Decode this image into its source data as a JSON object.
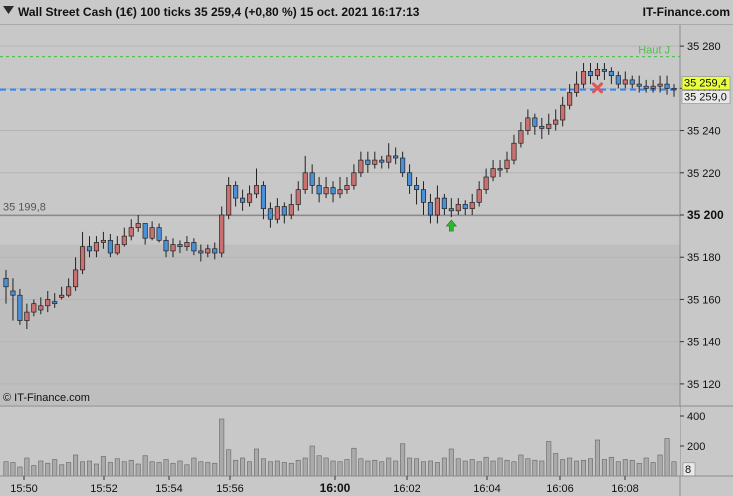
{
  "header": {
    "title": "Wall Street Cash (1€) 100 ticks 35 259,4 (+0,80 %) 15 oct. 2021 16:17:13",
    "brand": "IT-Finance.com",
    "menu_icon": "triangle-down-icon"
  },
  "watermark": "© IT-Finance.com",
  "chart_data": {
    "type": "candlestick",
    "instrument": "Wall Street Cash (1€)",
    "timeframe": "100 ticks",
    "last_price": 35259.4,
    "change_pct": 0.8,
    "date": "15 oct. 2021",
    "time": "16:17:13",
    "ylim": [
      35110,
      35290
    ],
    "y_ticks": [
      35280,
      35260,
      35240,
      35220,
      35200,
      35180,
      35160,
      35140,
      35120
    ],
    "y_tick_labels": [
      "35 280",
      "35 260",
      "35 240",
      "35 220",
      "35 200",
      "35 180",
      "35 160",
      "35 140",
      "35 120"
    ],
    "x_tick_labels": [
      "15:50",
      "15:52",
      "15:54",
      "15:56",
      "16:00",
      "16:02",
      "16:04",
      "16:06",
      "16:08"
    ],
    "x_tick_bold": "16:00",
    "candles": [
      [
        35166,
        35174,
        35158,
        35170
      ],
      [
        35162,
        35170,
        35150,
        35164
      ],
      [
        35150,
        35165,
        35148,
        35162
      ],
      [
        35154,
        35158,
        35146,
        35150
      ],
      [
        35158,
        35160,
        35152,
        35154
      ],
      [
        35157,
        35161,
        35153,
        35155
      ],
      [
        35160,
        35164,
        35154,
        35157
      ],
      [
        35158,
        35163,
        35156,
        35159
      ],
      [
        35162,
        35166,
        35160,
        35161
      ],
      [
        35166,
        35170,
        35161,
        35162
      ],
      [
        35174,
        35180,
        35164,
        35166
      ],
      [
        35185,
        35192,
        35172,
        35174
      ],
      [
        35183,
        35190,
        35180,
        35185
      ],
      [
        35187,
        35190,
        35180,
        35183
      ],
      [
        35188,
        35192,
        35184,
        35187
      ],
      [
        35182,
        35191,
        35180,
        35188
      ],
      [
        35186,
        35190,
        35181,
        35182
      ],
      [
        35190,
        35194,
        35185,
        35186
      ],
      [
        35194,
        35198,
        35188,
        35190
      ],
      [
        35196,
        35200,
        35192,
        35194
      ],
      [
        35189,
        35196,
        35186,
        35196
      ],
      [
        35194,
        35197,
        35188,
        35189
      ],
      [
        35188,
        35196,
        35187,
        35194
      ],
      [
        35183,
        35190,
        35180,
        35188
      ],
      [
        35186,
        35189,
        35180,
        35183
      ],
      [
        35185,
        35188,
        35182,
        35186
      ],
      [
        35187,
        35190,
        35183,
        35185
      ],
      [
        35183,
        35189,
        35181,
        35187
      ],
      [
        35182,
        35186,
        35178,
        35183
      ],
      [
        35184,
        35186,
        35180,
        35182
      ],
      [
        35182,
        35187,
        35179,
        35184
      ],
      [
        35200,
        35204,
        35180,
        35182
      ],
      [
        35214,
        35218,
        35198,
        35200
      ],
      [
        35208,
        35216,
        35204,
        35214
      ],
      [
        35206,
        35212,
        35202,
        35208
      ],
      [
        35210,
        35214,
        35204,
        35206
      ],
      [
        35214,
        35222,
        35208,
        35210
      ],
      [
        35203,
        35216,
        35198,
        35214
      ],
      [
        35198,
        35206,
        35194,
        35203
      ],
      [
        35204,
        35208,
        35196,
        35198
      ],
      [
        35200,
        35206,
        35196,
        35204
      ],
      [
        35205,
        35210,
        35198,
        35200
      ],
      [
        35212,
        35216,
        35202,
        35205
      ],
      [
        35220,
        35228,
        35210,
        35212
      ],
      [
        35214,
        35224,
        35210,
        35220
      ],
      [
        35210,
        35218,
        35206,
        35214
      ],
      [
        35213,
        35218,
        35208,
        35210
      ],
      [
        35210,
        35216,
        35206,
        35213
      ],
      [
        35212,
        35218,
        35208,
        35210
      ],
      [
        35214,
        35218,
        35210,
        35212
      ],
      [
        35220,
        35224,
        35212,
        35214
      ],
      [
        35226,
        35230,
        35218,
        35220
      ],
      [
        35224,
        35230,
        35220,
        35226
      ],
      [
        35226,
        35230,
        35222,
        35224
      ],
      [
        35225,
        35228,
        35222,
        35226
      ],
      [
        35228,
        35234,
        35222,
        35225
      ],
      [
        35227,
        35232,
        35224,
        35228
      ],
      [
        35220,
        35230,
        35218,
        35227
      ],
      [
        35214,
        35224,
        35210,
        35220
      ],
      [
        35212,
        35218,
        35205,
        35214
      ],
      [
        35206,
        35216,
        35200,
        35212
      ],
      [
        35200,
        35210,
        35196,
        35206
      ],
      [
        35208,
        35214,
        35196,
        35200
      ],
      [
        35203,
        35210,
        35200,
        35208
      ],
      [
        35202,
        35208,
        35199,
        35203
      ],
      [
        35205,
        35208,
        35200,
        35202
      ],
      [
        35203,
        35207,
        35200,
        35205
      ],
      [
        35206,
        35210,
        35200,
        35203
      ],
      [
        35212,
        35216,
        35204,
        35206
      ],
      [
        35218,
        35222,
        35210,
        35212
      ],
      [
        35222,
        35226,
        35216,
        35218
      ],
      [
        35222,
        35226,
        35218,
        35222
      ],
      [
        35226,
        35230,
        35220,
        35222
      ],
      [
        35234,
        35238,
        35224,
        35226
      ],
      [
        35240,
        35244,
        35232,
        35234
      ],
      [
        35246,
        35250,
        35238,
        35240
      ],
      [
        35242,
        35248,
        35238,
        35246
      ],
      [
        35241,
        35246,
        35236,
        35242
      ],
      [
        35243,
        35248,
        35238,
        35241
      ],
      [
        35245,
        35250,
        35240,
        35243
      ],
      [
        35252,
        35256,
        35242,
        35245
      ],
      [
        35258,
        35262,
        35250,
        35252
      ],
      [
        35262,
        35268,
        35256,
        35258
      ],
      [
        35268,
        35272,
        35260,
        35262
      ],
      [
        35266,
        35272,
        35262,
        35268
      ],
      [
        35269,
        35272,
        35264,
        35266
      ],
      [
        35268,
        35272,
        35264,
        35269
      ],
      [
        35266,
        35270,
        35262,
        35268
      ],
      [
        35262,
        35268,
        35260,
        35266
      ],
      [
        35264,
        35268,
        35260,
        35262
      ],
      [
        35262,
        35266,
        35260,
        35264
      ],
      [
        35261,
        35266,
        35258,
        35262
      ],
      [
        35260,
        35264,
        35258,
        35261
      ],
      [
        35261,
        35264,
        35258,
        35260
      ],
      [
        35262,
        35266,
        35258,
        35261
      ],
      [
        35260,
        35266,
        35257,
        35262
      ],
      [
        35259.4,
        35262,
        35256,
        35260
      ]
    ],
    "volume": {
      "y_ticks": [
        400,
        200,
        8
      ],
      "y_tick_labels": [
        "400",
        "200",
        "8"
      ],
      "ylim": [
        0,
        460
      ],
      "values": [
        95,
        90,
        60,
        120,
        70,
        100,
        85,
        110,
        75,
        90,
        140,
        95,
        100,
        80,
        130,
        90,
        115,
        95,
        105,
        80,
        135,
        95,
        90,
        110,
        85,
        100,
        75,
        120,
        95,
        90,
        85,
        380,
        175,
        105,
        120,
        95,
        180,
        115,
        95,
        100,
        90,
        85,
        105,
        120,
        200,
        135,
        120,
        100,
        95,
        110,
        185,
        115,
        100,
        105,
        95,
        120,
        100,
        215,
        120,
        115,
        95,
        100,
        90,
        120,
        180,
        115,
        100,
        110,
        95,
        125,
        100,
        120,
        105,
        95,
        140,
        115,
        105,
        100,
        230,
        150,
        110,
        120,
        100,
        105,
        115,
        240,
        110,
        125,
        95,
        110,
        105,
        85,
        120,
        90,
        140,
        250,
        95
      ]
    },
    "annotations": {
      "haut_label": "Haut J",
      "haut_value": 35275,
      "previous_close_label": "35 199,8",
      "previous_close_value": 35199.8,
      "current_price_label": "35 259,4",
      "current_price_value": 35259.4,
      "second_price_label": "35 259,0",
      "second_price_value": 35259,
      "buy_signal_candle": 64,
      "sell_signal_candle": 85,
      "shaded_below": 35186
    },
    "colors": {
      "up": "#4a90d9",
      "down": "#c97070",
      "background": "#c8c8c8",
      "shade": "#bebebe",
      "price_line": "#2f86ff",
      "haut_line": "#3fbf3f",
      "current_price_bg": "#e8ff40",
      "volume_bar": "#aaaaaa",
      "buy_arrow": "#2fb82f",
      "sell_cross": "#e05555"
    },
    "grid": true
  }
}
